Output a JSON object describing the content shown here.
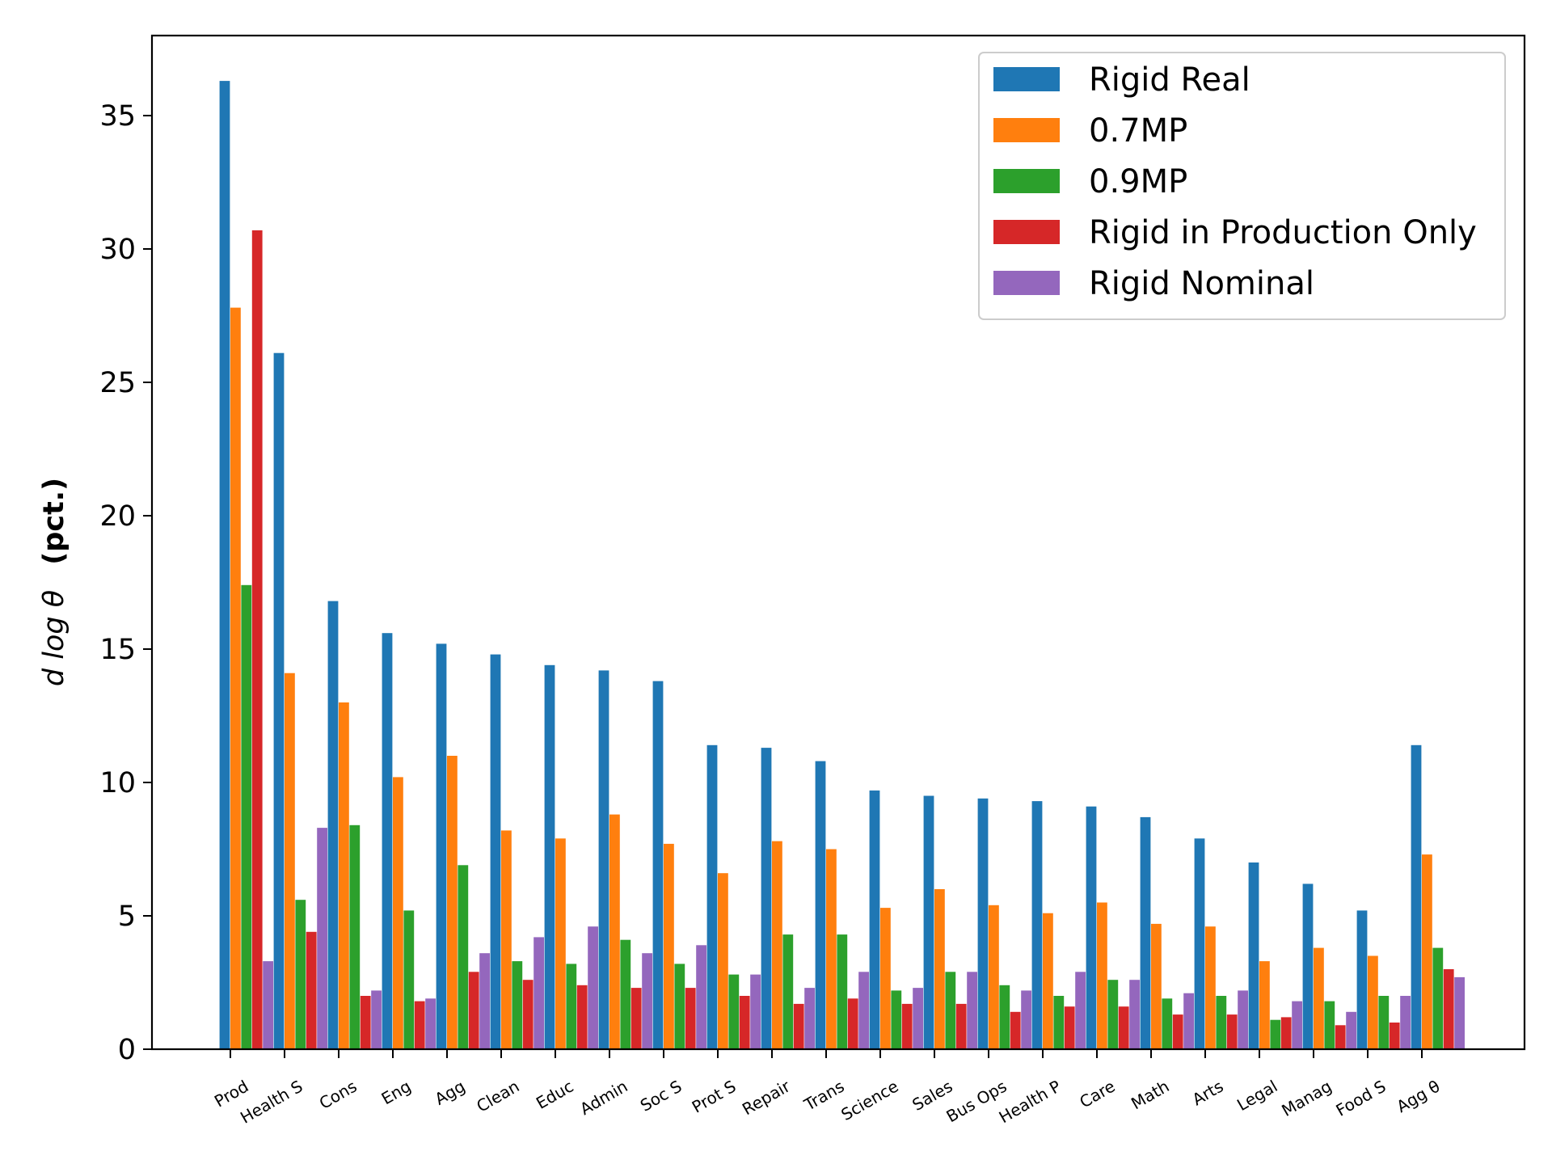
{
  "chart_data": {
    "type": "bar",
    "title": "",
    "xlabel": "",
    "ylabel": "d log θ",
    "ylabel_unit": "(pct.)",
    "ylim": [
      0,
      38
    ],
    "yticks": [
      0,
      5,
      10,
      15,
      20,
      25,
      30,
      35
    ],
    "grid": false,
    "legend_position": "top-right",
    "categories": [
      "Prod",
      "Health S",
      "Cons",
      "Eng",
      "Agg",
      "Clean",
      "Educ",
      "Admin",
      "Soc S",
      "Prot S",
      "Repair",
      "Trans",
      "Science",
      "Sales",
      "Bus Ops",
      "Health P",
      "Care",
      "Math",
      "Arts",
      "Legal",
      "Manag",
      "Food S",
      "Agg θ"
    ],
    "series": [
      {
        "name": "Rigid Real",
        "color": "#1f77b4",
        "values": [
          36.3,
          26.1,
          16.8,
          15.6,
          15.2,
          14.8,
          14.4,
          14.2,
          13.8,
          11.4,
          11.3,
          10.8,
          9.7,
          9.5,
          9.4,
          9.3,
          9.1,
          8.7,
          7.9,
          7.0,
          6.2,
          5.2,
          11.4
        ]
      },
      {
        "name": "0.7MP",
        "color": "#ff7f0e",
        "values": [
          27.8,
          14.1,
          13.0,
          10.2,
          11.0,
          8.2,
          7.9,
          8.8,
          7.7,
          6.6,
          7.8,
          7.5,
          5.3,
          6.0,
          5.4,
          5.1,
          5.5,
          4.7,
          4.6,
          3.3,
          3.8,
          3.5,
          7.3
        ]
      },
      {
        "name": "0.9MP",
        "color": "#2ca02c",
        "values": [
          17.4,
          5.6,
          8.4,
          5.2,
          6.9,
          3.3,
          3.2,
          4.1,
          3.2,
          2.8,
          4.3,
          4.3,
          2.2,
          2.9,
          2.4,
          2.0,
          2.6,
          1.9,
          2.0,
          1.1,
          1.8,
          2.0,
          3.8
        ]
      },
      {
        "name": "Rigid in Production Only",
        "color": "#d62728",
        "values": [
          30.7,
          4.4,
          2.0,
          1.8,
          2.9,
          2.6,
          2.4,
          2.3,
          2.3,
          2.0,
          1.7,
          1.9,
          1.7,
          1.7,
          1.4,
          1.6,
          1.6,
          1.3,
          1.3,
          1.2,
          0.9,
          1.0,
          3.0
        ]
      },
      {
        "name": "Rigid Nominal",
        "color": "#9467bd",
        "values": [
          3.3,
          8.3,
          2.2,
          1.9,
          3.6,
          4.2,
          4.6,
          3.6,
          3.9,
          2.8,
          2.3,
          2.9,
          2.3,
          2.9,
          2.2,
          2.9,
          2.6,
          2.1,
          2.2,
          1.8,
          1.4,
          2.0,
          2.7
        ]
      }
    ]
  }
}
